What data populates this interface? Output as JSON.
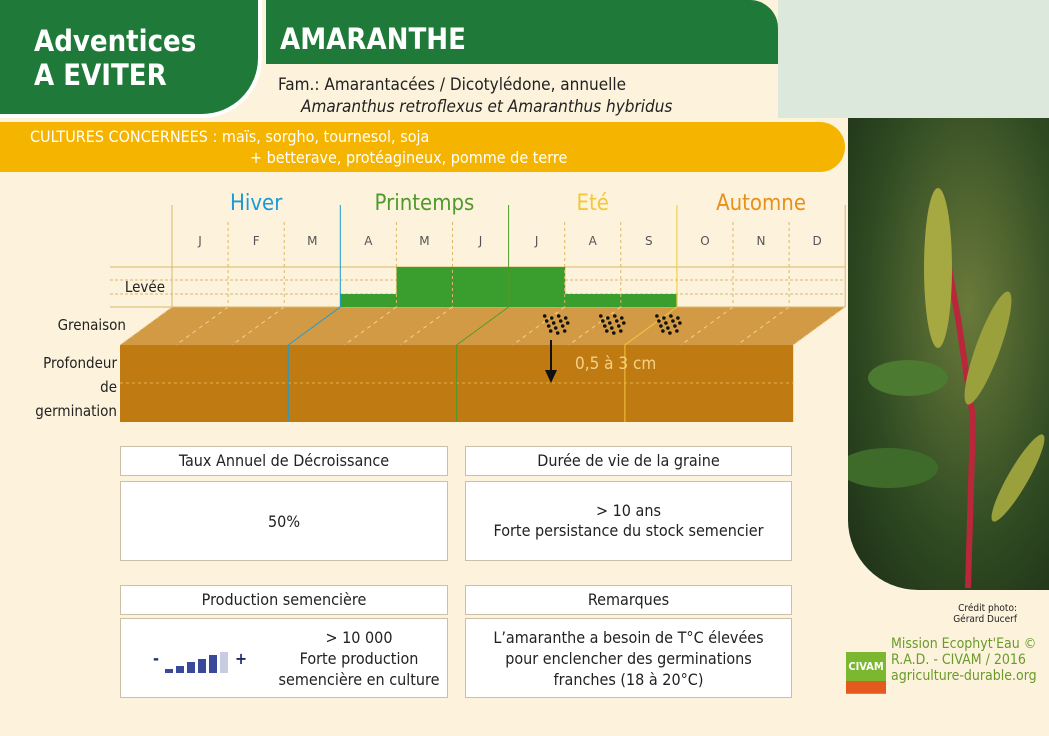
{
  "brand": {
    "line1": "Adventices",
    "line2": "A EVITER"
  },
  "title": "AMARANTHE",
  "family": "Fam.: Amarantacées / Dicotylédone, annuelle",
  "species": "Amaranthus retroflexus et Amaranthus hybridus",
  "cultures": {
    "line1": "CULTURES CONCERNEES : maïs, sorgho, tournesol, soja",
    "line2": "+ betterave, protéagineux, pomme de terre"
  },
  "chart": {
    "seasons": [
      {
        "label": "Hiver",
        "color": "#1a9ad6"
      },
      {
        "label": "Printemps",
        "color": "#4f9a2a"
      },
      {
        "label": "Eté",
        "color": "#f2c83a"
      },
      {
        "label": "Automne",
        "color": "#e8901a"
      }
    ],
    "months": [
      "J",
      "F",
      "M",
      "A",
      "M",
      "J",
      "J",
      "A",
      "S",
      "O",
      "N",
      "D"
    ],
    "row_labels": {
      "levee": "Levée",
      "grenaison": "Grenaison",
      "profondeur1": "Profondeur",
      "profondeur2": "de",
      "profondeur3": "germination"
    },
    "levee_level": [
      0,
      0,
      0,
      1,
      3,
      3,
      3,
      1,
      1,
      0,
      0,
      0
    ],
    "grenaison_months": [
      7,
      8,
      9
    ],
    "depth": "0,5 à 3 cm",
    "colors": {
      "levee": "#3a9e2e",
      "soil_top": "#d39a45",
      "soil_front": "#c07a12"
    }
  },
  "boxes": {
    "decay": {
      "title": "Taux Annuel de Décroissance",
      "value": "50%"
    },
    "life": {
      "title": "Durée de vie de la graine",
      "line1": "> 10 ans",
      "line2": "Forte persistance du stock semencier"
    },
    "production": {
      "title": "Production semencière",
      "line1": "> 10 000",
      "line2": "Forte production",
      "line3": "semencière en culture",
      "minus": "-",
      "plus": "+",
      "level": 5,
      "max": 6
    },
    "remarks": {
      "title": "Remarques",
      "line1": "L’amaranthe a besoin de T°C élevées",
      "line2": "pour enclencher des germinations",
      "line3": "franches (18 à 20°C)"
    }
  },
  "credit": {
    "line1": "Crédit photo:",
    "line2": "Gérard Ducerf"
  },
  "footer": {
    "line1": "Mission Ecophyt'Eau ©",
    "line2": "R.A.D. - CIVAM / 2016",
    "line3": "agriculture-durable.org",
    "logo": "CIVAM"
  }
}
